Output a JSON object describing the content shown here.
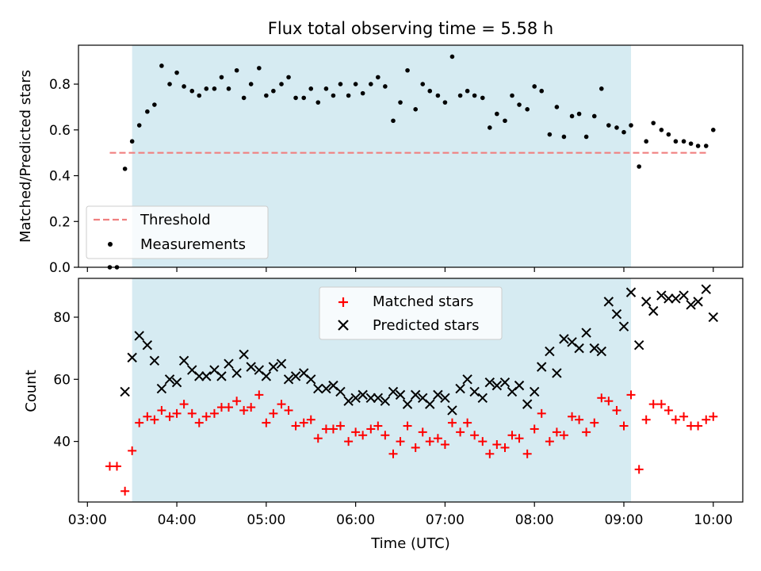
{
  "figure": {
    "title": "Flux total observing time = 5.58 h",
    "xlabel": "Time (UTC)",
    "x_ticks": [
      "03:00",
      "04:00",
      "05:00",
      "06:00",
      "07:00",
      "08:00",
      "09:00",
      "10:00"
    ],
    "x_range_hours": [
      2.9,
      10.33
    ],
    "observing_window_hours": [
      3.5,
      9.08
    ],
    "colors": {
      "shading": "#add8e6",
      "threshold": "#f08080",
      "measurements": "#000000",
      "matched": "#ff0000",
      "predicted": "#000000"
    }
  },
  "chart_data": [
    {
      "type": "scatter",
      "ylabel": "Matched/Predicted stars",
      "ylim": [
        0,
        0.97
      ],
      "y_ticks": [
        "0.0",
        "0.2",
        "0.4",
        "0.6",
        "0.8"
      ],
      "legend": {
        "placement": "lower-left",
        "threshold_label": "Threshold",
        "measurements_label": "Measurements"
      },
      "threshold": {
        "x": [
          3.25,
          9.92
        ],
        "y": 0.5
      },
      "x_hours": [
        3.25,
        3.33,
        3.42,
        3.5,
        3.58,
        3.67,
        3.75,
        3.83,
        3.92,
        4.0,
        4.08,
        4.17,
        4.25,
        4.33,
        4.42,
        4.5,
        4.58,
        4.67,
        4.75,
        4.83,
        4.92,
        5.0,
        5.08,
        5.17,
        5.25,
        5.33,
        5.42,
        5.5,
        5.58,
        5.67,
        5.75,
        5.83,
        5.92,
        6.0,
        6.08,
        6.17,
        6.25,
        6.33,
        6.42,
        6.5,
        6.58,
        6.67,
        6.75,
        6.83,
        6.92,
        7.0,
        7.08,
        7.17,
        7.25,
        7.33,
        7.42,
        7.5,
        7.58,
        7.67,
        7.75,
        7.83,
        7.92,
        8.0,
        8.08,
        8.17,
        8.25,
        8.33,
        8.42,
        8.5,
        8.58,
        8.67,
        8.75,
        8.83,
        8.92,
        9.0,
        9.08,
        9.17,
        9.25,
        9.33,
        9.42,
        9.5,
        9.58,
        9.67,
        9.75,
        9.83,
        9.92,
        10.0
      ],
      "ratio": [
        0.0,
        0.0,
        0.43,
        0.55,
        0.62,
        0.68,
        0.71,
        0.88,
        0.8,
        0.85,
        0.79,
        0.77,
        0.75,
        0.78,
        0.78,
        0.83,
        0.78,
        0.86,
        0.74,
        0.8,
        0.87,
        0.75,
        0.77,
        0.8,
        0.83,
        0.74,
        0.74,
        0.78,
        0.72,
        0.78,
        0.75,
        0.8,
        0.75,
        0.8,
        0.76,
        0.8,
        0.83,
        0.79,
        0.64,
        0.72,
        0.86,
        0.69,
        0.8,
        0.77,
        0.75,
        0.72,
        0.92,
        0.75,
        0.77,
        0.75,
        0.74,
        0.61,
        0.67,
        0.64,
        0.75,
        0.71,
        0.69,
        0.79,
        0.77,
        0.58,
        0.7,
        0.57,
        0.66,
        0.67,
        0.57,
        0.66,
        0.78,
        0.62,
        0.61,
        0.59,
        0.62,
        0.44,
        0.55,
        0.63,
        0.6,
        0.58,
        0.55,
        0.55,
        0.54,
        0.53,
        0.53,
        0.6
      ]
    },
    {
      "type": "scatter",
      "ylabel": "Count",
      "ylim": [
        20.5,
        92.5
      ],
      "y_ticks": [
        "40",
        "60",
        "80"
      ],
      "legend": {
        "placement": "upper-center",
        "matched_label": "Matched stars",
        "predicted_label": "Predicted stars"
      },
      "x_hours": [
        3.25,
        3.33,
        3.42,
        3.5,
        3.58,
        3.67,
        3.75,
        3.83,
        3.92,
        4.0,
        4.08,
        4.17,
        4.25,
        4.33,
        4.42,
        4.5,
        4.58,
        4.67,
        4.75,
        4.83,
        4.92,
        5.0,
        5.08,
        5.17,
        5.25,
        5.33,
        5.42,
        5.5,
        5.58,
        5.67,
        5.75,
        5.83,
        5.92,
        6.0,
        6.08,
        6.17,
        6.25,
        6.33,
        6.42,
        6.5,
        6.58,
        6.67,
        6.75,
        6.83,
        6.92,
        7.0,
        7.08,
        7.17,
        7.25,
        7.33,
        7.42,
        7.5,
        7.58,
        7.67,
        7.75,
        7.83,
        7.92,
        8.0,
        8.08,
        8.17,
        8.25,
        8.33,
        8.42,
        8.5,
        8.58,
        8.67,
        8.75,
        8.83,
        8.92,
        9.0,
        9.08,
        9.17,
        9.25,
        9.33,
        9.42,
        9.5,
        9.58,
        9.67,
        9.75,
        9.83,
        9.92,
        10.0
      ],
      "matched": [
        32,
        32,
        24,
        37,
        46,
        48,
        47,
        50,
        48,
        49,
        52,
        49,
        46,
        48,
        49,
        51,
        51,
        53,
        50,
        51,
        55,
        46,
        49,
        52,
        50,
        45,
        46,
        47,
        41,
        44,
        44,
        45,
        40,
        43,
        42,
        44,
        45,
        42,
        36,
        40,
        45,
        38,
        43,
        40,
        41,
        39,
        46,
        43,
        46,
        42,
        40,
        36,
        39,
        38,
        42,
        41,
        36,
        44,
        49,
        40,
        43,
        42,
        48,
        47,
        43,
        46,
        54,
        53,
        50,
        45,
        55,
        31,
        47,
        52,
        52,
        50,
        47,
        48,
        45,
        45,
        47,
        48
      ],
      "predicted": [
        null,
        null,
        56,
        67,
        74,
        71,
        66,
        57,
        60,
        59,
        66,
        63,
        61,
        61,
        63,
        61,
        65,
        62,
        68,
        64,
        63,
        61,
        64,
        65,
        60,
        61,
        62,
        60,
        57,
        57,
        58,
        56,
        53,
        54,
        55,
        54,
        54,
        53,
        56,
        55,
        52,
        55,
        54,
        52,
        55,
        54,
        50,
        57,
        60,
        56,
        54,
        59,
        58,
        59,
        56,
        58,
        52,
        56,
        64,
        69,
        62,
        73,
        72,
        70,
        75,
        70,
        69,
        85,
        81,
        77,
        88,
        71,
        85,
        82,
        87,
        86,
        86,
        87,
        84,
        85,
        89,
        80
      ]
    }
  ]
}
